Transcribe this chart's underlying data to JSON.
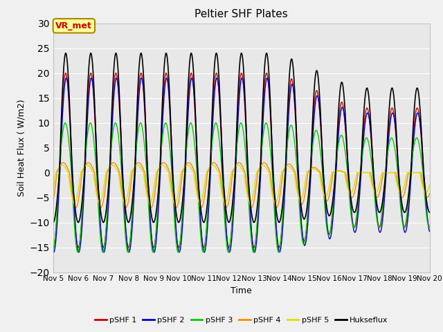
{
  "title": "Peltier SHF Plates",
  "ylabel": "Soil Heat Flux ( W/m2)",
  "xlabel": "Time",
  "ylim": [
    -20,
    30
  ],
  "xlim_days": [
    5,
    20
  ],
  "background_color": "#e8e8e8",
  "axes_bg_color": "#e8e8e8",
  "series_colors": {
    "pSHF 1": "#cc0000",
    "pSHF 2": "#0000cc",
    "pSHF 3": "#00cc00",
    "pSHF 4": "#ff8800",
    "pSHF 5": "#dddd00",
    "Hukseflux": "#000000"
  },
  "annotation_text": "VR_met",
  "annotation_color": "#cc0000",
  "annotation_bg": "#ffff99",
  "annotation_border": "#aa8800",
  "tick_labels": [
    "Nov 5",
    "Nov 6",
    "Nov 7",
    "Nov 8",
    "Nov 9",
    "Nov 10",
    "Nov 11",
    "Nov 12",
    "Nov 13",
    "Nov 14",
    "Nov 15",
    "Nov 16",
    "Nov 17",
    "Nov 18",
    "Nov 19",
    "Nov 20"
  ],
  "n_days": 15,
  "dt": 0.01,
  "period": 1.0,
  "amplitude_shf1": 17.5,
  "amplitude_shf2": 17.0,
  "amplitude_shf3": 14.0,
  "amplitude_shf4": 6.5,
  "amplitude_shf5": 5.5,
  "amplitude_huk": 20.0,
  "phase_shf1": 0.0,
  "phase_shf2": 0.05,
  "phase_shf3": 0.1,
  "phase_shf4": 0.15,
  "phase_shf5": 0.2,
  "phase_huk": -0.05
}
